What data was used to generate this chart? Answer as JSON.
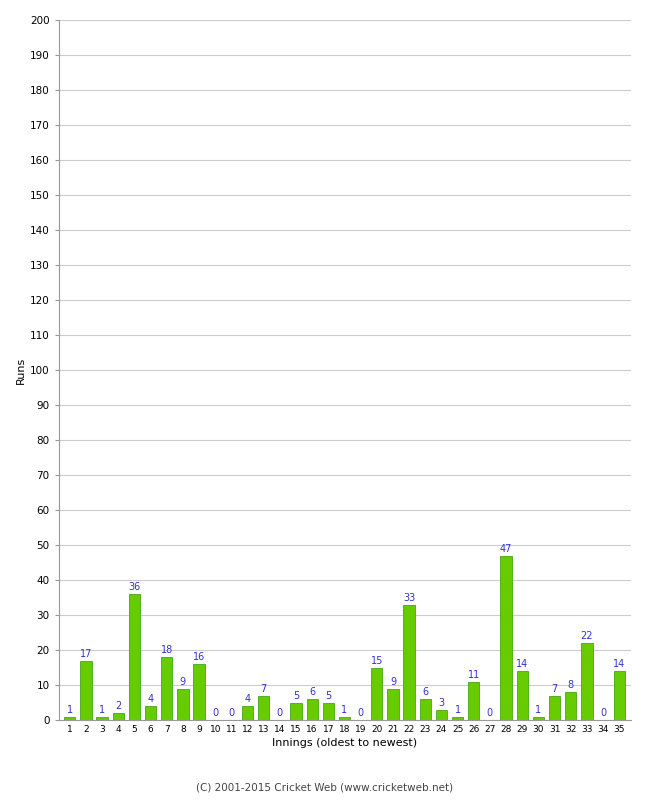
{
  "innings": [
    1,
    2,
    3,
    4,
    5,
    6,
    7,
    8,
    9,
    10,
    11,
    12,
    13,
    14,
    15,
    16,
    17,
    18,
    19,
    20,
    21,
    22,
    23,
    24,
    25,
    26,
    27,
    28,
    29,
    30,
    31,
    32,
    33,
    34,
    35
  ],
  "runs": [
    1,
    17,
    1,
    2,
    36,
    4,
    18,
    9,
    16,
    0,
    0,
    4,
    7,
    0,
    5,
    6,
    5,
    1,
    0,
    15,
    9,
    33,
    6,
    3,
    1,
    11,
    0,
    47,
    14,
    1,
    7,
    8,
    22,
    0,
    14
  ],
  "bar_color": "#66cc00",
  "bar_edge_color": "#339900",
  "label_color": "#3333cc",
  "ylabel": "Runs",
  "xlabel": "Innings (oldest to newest)",
  "ylim": [
    0,
    200
  ],
  "ytick_step": 10,
  "background_color": "#ffffff",
  "grid_color": "#cccccc",
  "footer": "(C) 2001-2015 Cricket Web (www.cricketweb.net)"
}
